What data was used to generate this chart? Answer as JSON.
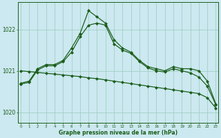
{
  "line1": {
    "x": [
      0,
      1,
      2,
      3,
      4,
      5,
      6,
      7,
      8,
      9,
      10,
      11,
      12,
      13,
      14,
      15,
      16,
      17,
      18,
      19,
      20,
      21,
      22,
      23
    ],
    "y": [
      1020.7,
      1020.75,
      1021.05,
      1021.15,
      1021.15,
      1021.25,
      1021.55,
      1021.9,
      1022.45,
      1022.3,
      1022.15,
      1021.75,
      1021.55,
      1021.45,
      1021.25,
      1021.1,
      1021.05,
      1021.0,
      1021.1,
      1021.05,
      1021.05,
      1021.0,
      1020.75,
      1020.2
    ]
  },
  "line2": {
    "x": [
      0,
      1,
      2,
      3,
      4,
      5,
      6,
      7,
      8,
      9,
      10,
      11,
      12,
      13,
      14,
      15,
      16,
      17,
      18,
      19,
      20,
      21,
      22,
      23
    ],
    "y": [
      1020.68,
      1020.72,
      1021.02,
      1021.12,
      1021.12,
      1021.22,
      1021.45,
      1021.82,
      1022.1,
      1022.15,
      1022.1,
      1021.65,
      1021.5,
      1021.42,
      1021.22,
      1021.07,
      1021.0,
      1020.97,
      1021.05,
      1021.0,
      1020.95,
      1020.85,
      1020.63,
      1020.18
    ]
  },
  "line3": {
    "x": [
      0,
      1,
      2,
      3,
      4,
      5,
      6,
      7,
      8,
      9,
      10,
      11,
      12,
      13,
      14,
      15,
      16,
      17,
      18,
      19,
      20,
      21,
      22,
      23
    ],
    "y": [
      1021.0,
      1020.98,
      1020.96,
      1020.94,
      1020.92,
      1020.9,
      1020.88,
      1020.86,
      1020.83,
      1020.81,
      1020.78,
      1020.75,
      1020.72,
      1020.69,
      1020.66,
      1020.63,
      1020.6,
      1020.57,
      1020.54,
      1020.51,
      1020.48,
      1020.45,
      1020.35,
      1020.1
    ]
  },
  "background_color": "#cce8f0",
  "grid_color": "#99ccbb",
  "line_color": "#1a5e1a",
  "ylabel_values": [
    1020,
    1021,
    1022
  ],
  "xlabel_values": [
    0,
    1,
    2,
    3,
    4,
    5,
    6,
    7,
    8,
    9,
    10,
    11,
    12,
    13,
    14,
    15,
    16,
    17,
    18,
    19,
    20,
    21,
    22,
    23
  ],
  "xlabel": "Graphe pression niveau de la mer (hPa)",
  "ylim": [
    1019.75,
    1022.65
  ],
  "xlim": [
    -0.3,
    23.3
  ]
}
